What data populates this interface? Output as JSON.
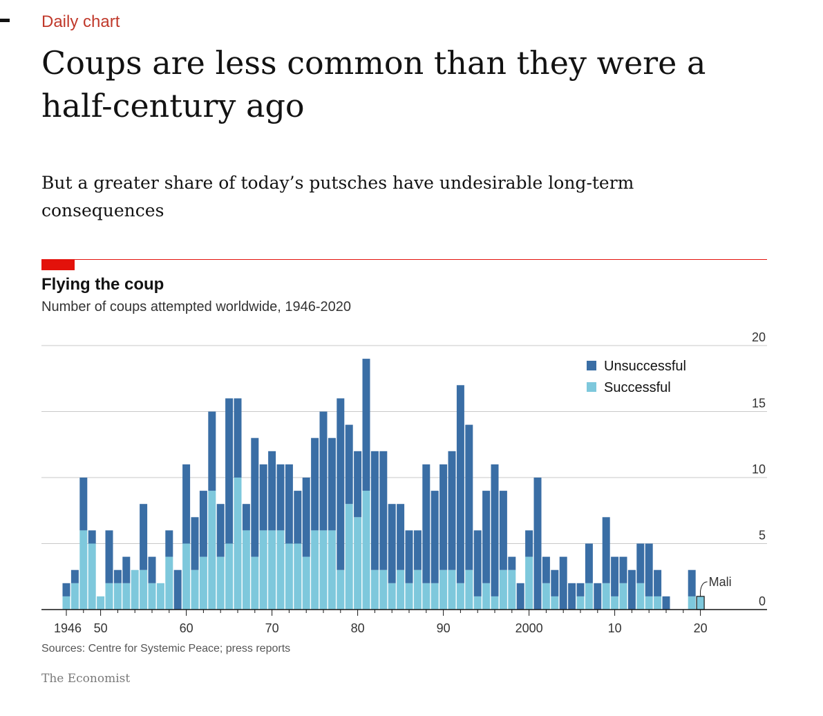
{
  "article": {
    "kicker": "Daily chart",
    "headline": "Coups are less common than they were a half-century ago",
    "standfirst": "But a greater share of today’s putsches have undesirable long-term consequences",
    "brand": "The Economist"
  },
  "colors": {
    "accent_red": "#e3120b",
    "kicker_red": "#c0392b",
    "unsuccessful": "#3a6ea5",
    "successful": "#7ec8dc",
    "grid": "#c9c9c9"
  },
  "chart_data": {
    "type": "bar",
    "stacked": true,
    "title": "Flying the coup",
    "subtitle": "Number of coups attempted worldwide, 1946-2020",
    "source": "Sources: Centre for Systemic Peace; press reports",
    "x": [
      1946,
      1947,
      1948,
      1949,
      1950,
      1951,
      1952,
      1953,
      1954,
      1955,
      1956,
      1957,
      1958,
      1959,
      1960,
      1961,
      1962,
      1963,
      1964,
      1965,
      1966,
      1967,
      1968,
      1969,
      1970,
      1971,
      1972,
      1973,
      1974,
      1975,
      1976,
      1977,
      1978,
      1979,
      1980,
      1981,
      1982,
      1983,
      1984,
      1985,
      1986,
      1987,
      1988,
      1989,
      1990,
      1991,
      1992,
      1993,
      1994,
      1995,
      1996,
      1997,
      1998,
      1999,
      2000,
      2001,
      2002,
      2003,
      2004,
      2005,
      2006,
      2007,
      2008,
      2009,
      2010,
      2011,
      2012,
      2013,
      2014,
      2015,
      2016,
      2017,
      2018,
      2019,
      2020
    ],
    "series": [
      {
        "name": "Successful",
        "values": [
          1,
          2,
          6,
          5,
          1,
          2,
          2,
          2,
          3,
          3,
          2,
          2,
          4,
          0,
          5,
          3,
          4,
          9,
          4,
          5,
          10,
          6,
          4,
          6,
          6,
          6,
          5,
          5,
          4,
          6,
          6,
          6,
          3,
          8,
          7,
          9,
          3,
          3,
          2,
          3,
          2,
          3,
          2,
          2,
          3,
          3,
          2,
          3,
          1,
          2,
          1,
          3,
          3,
          0,
          4,
          0,
          2,
          1,
          0,
          0,
          1,
          2,
          0,
          2,
          1,
          2,
          0,
          2,
          1,
          1,
          0,
          0,
          0,
          1,
          1
        ]
      },
      {
        "name": "Unsuccessful",
        "values": [
          1,
          1,
          4,
          1,
          0,
          4,
          1,
          2,
          0,
          5,
          2,
          0,
          2,
          3,
          6,
          4,
          5,
          6,
          4,
          11,
          6,
          2,
          9,
          5,
          6,
          5,
          6,
          4,
          6,
          7,
          9,
          7,
          13,
          6,
          5,
          10,
          9,
          9,
          6,
          5,
          4,
          3,
          9,
          7,
          8,
          9,
          15,
          11,
          5,
          7,
          10,
          6,
          1,
          2,
          2,
          10,
          2,
          2,
          4,
          2,
          1,
          3,
          2,
          5,
          3,
          2,
          3,
          3,
          4,
          2,
          1,
          0,
          0,
          2,
          0
        ]
      }
    ],
    "ylim": [
      0,
      20
    ],
    "yticks": [
      0,
      5,
      10,
      15,
      20
    ],
    "xticks": [
      {
        "year": 1946,
        "label": "1946"
      },
      {
        "year": 1950,
        "label": "50"
      },
      {
        "year": 1960,
        "label": "60"
      },
      {
        "year": 1970,
        "label": "70"
      },
      {
        "year": 1980,
        "label": "80"
      },
      {
        "year": 1990,
        "label": "90"
      },
      {
        "year": 2000,
        "label": "2000"
      },
      {
        "year": 2010,
        "label": "10"
      },
      {
        "year": 2020,
        "label": "20"
      }
    ],
    "legend": [
      {
        "label": "Unsuccessful",
        "series": "Unsuccessful"
      },
      {
        "label": "Successful",
        "series": "Successful"
      }
    ],
    "legend_position": "top-right",
    "annotation": {
      "year": 2020,
      "label": "Mali"
    },
    "grid": true
  }
}
